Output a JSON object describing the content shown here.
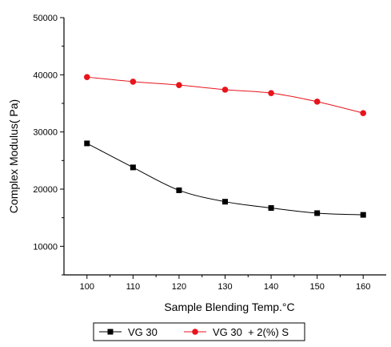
{
  "chart_data": {
    "type": "line",
    "title": "",
    "xlabel": "Sample Blending Temp.°C",
    "ylabel": "Complex Modulus( Pa)",
    "x": [
      100,
      110,
      120,
      130,
      140,
      150,
      160
    ],
    "x_ticks": [
      "100",
      "110",
      "120",
      "130",
      "140",
      "150",
      "160"
    ],
    "y_ticks": [
      "10000",
      "20000",
      "30000",
      "40000",
      "50000"
    ],
    "xlim": [
      95,
      165
    ],
    "ylim": [
      5000,
      50000
    ],
    "grid": false,
    "legend_position": "bottom",
    "series": [
      {
        "name": "VG 30",
        "values": [
          28000,
          23800,
          19800,
          17800,
          16700,
          15800,
          15500
        ],
        "color": "#000000",
        "marker": "square"
      },
      {
        "name": "VG 30  + 2(%) S",
        "values": [
          39600,
          38800,
          38200,
          37400,
          36800,
          35300,
          33300
        ],
        "color": "#e8141c",
        "marker": "circle"
      }
    ]
  }
}
